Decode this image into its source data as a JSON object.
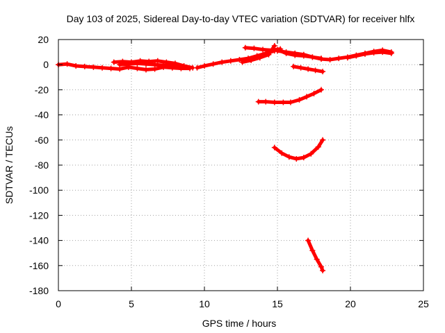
{
  "chart_data": {
    "type": "scatter",
    "title": "Day 103 of 2025, Sidereal Day-to-day VTEC variation (SDTVAR) for receiver hlfx",
    "xlabel": "GPS time / hours",
    "ylabel": "SDTVAR / TECUs",
    "xlim": [
      0,
      25
    ],
    "ylim": [
      -180,
      20
    ],
    "x_ticks": [
      0,
      5,
      10,
      15,
      20,
      25
    ],
    "y_ticks": [
      20,
      0,
      -20,
      -40,
      -60,
      -80,
      -100,
      -120,
      -140,
      -160,
      -180
    ],
    "grid": true,
    "grid_style": "dotted",
    "legend": "none",
    "marker": "plus",
    "color": "#ff0000",
    "series": [
      {
        "x": [
          0.0,
          0.6,
          1.2,
          1.8,
          2.4,
          3.0,
          3.6,
          4.2,
          4.8,
          5.4,
          6.0,
          6.6,
          7.2,
          7.8,
          8.4,
          9.0
        ],
        "y": [
          0.0,
          0.5,
          -1.0,
          -1.5,
          -2.0,
          -2.5,
          -3.0,
          -3.5,
          -2.0,
          -3.0,
          -4.0,
          -3.5,
          -2.0,
          -2.5,
          -3.0,
          -3.0
        ]
      },
      {
        "x": [
          3.8,
          4.4,
          5.0,
          5.6,
          6.2,
          6.8,
          7.4,
          8.0,
          8.6,
          9.2
        ],
        "y": [
          2.0,
          2.5,
          2.0,
          3.0,
          2.5,
          3.0,
          2.0,
          1.0,
          -1.0,
          -2.5
        ]
      },
      {
        "x": [
          4.2,
          4.8,
          5.4,
          6.0,
          6.6,
          7.2,
          7.8,
          8.4
        ],
        "y": [
          0.0,
          0.5,
          1.0,
          0.5,
          0.0,
          -0.5,
          -1.0,
          -1.5
        ]
      },
      {
        "x": [
          9.5,
          10.0,
          10.6,
          11.2,
          11.8,
          12.4,
          13.0,
          13.6,
          14.2,
          14.8
        ],
        "y": [
          -2.5,
          -1.0,
          0.5,
          2.0,
          3.0,
          4.0,
          5.0,
          7.0,
          9.0,
          11.0
        ]
      },
      {
        "x": [
          12.6,
          13.2,
          13.8,
          14.4,
          14.8
        ],
        "y": [
          2.0,
          3.5,
          5.5,
          8.0,
          15.0
        ]
      },
      {
        "x": [
          12.8,
          13.4,
          14.0,
          14.6,
          15.2
        ],
        "y": [
          13.5,
          13.0,
          12.0,
          11.5,
          12.5
        ]
      },
      {
        "x": [
          15.0,
          15.6,
          16.2,
          16.8,
          17.4,
          18.0,
          18.6,
          19.2,
          19.8,
          20.4,
          21.0,
          21.6,
          22.2,
          22.8
        ],
        "y": [
          11.0,
          10.0,
          9.0,
          8.0,
          6.0,
          4.5,
          4.0,
          5.0,
          6.0,
          7.5,
          9.0,
          10.5,
          11.5,
          10.0
        ]
      },
      {
        "x": [
          15.0,
          15.6,
          16.2,
          16.8,
          17.4,
          18.0
        ],
        "y": [
          12.0,
          9.0,
          7.5,
          7.0,
          6.0,
          5.0
        ]
      },
      {
        "x": [
          19.8,
          20.4,
          21.0,
          21.6,
          22.2,
          22.8
        ],
        "y": [
          5.5,
          7.0,
          8.5,
          9.5,
          10.0,
          9.0
        ]
      },
      {
        "x": [
          16.1,
          16.6,
          17.1,
          17.6,
          18.1
        ],
        "y": [
          -1.5,
          -2.5,
          -3.5,
          -4.5,
          -5.5
        ]
      },
      {
        "x": [
          13.7,
          14.2,
          14.8,
          15.4,
          15.9,
          16.5,
          17.0,
          17.5,
          18.0
        ],
        "y": [
          -29.5,
          -29.5,
          -30.0,
          -30.0,
          -30.0,
          -28.0,
          -25.5,
          -23.0,
          -20.0
        ]
      },
      {
        "x": [
          14.8,
          15.3,
          15.8,
          16.3,
          16.8,
          17.3,
          17.8,
          18.1
        ],
        "y": [
          -66.0,
          -70.5,
          -73.5,
          -75.0,
          -74.0,
          -71.0,
          -65.5,
          -60.0
        ]
      },
      {
        "x": [
          17.1,
          17.4,
          17.7,
          18.0,
          18.1
        ],
        "y": [
          -140.0,
          -148.0,
          -155.0,
          -161.0,
          -164.0
        ]
      }
    ]
  }
}
